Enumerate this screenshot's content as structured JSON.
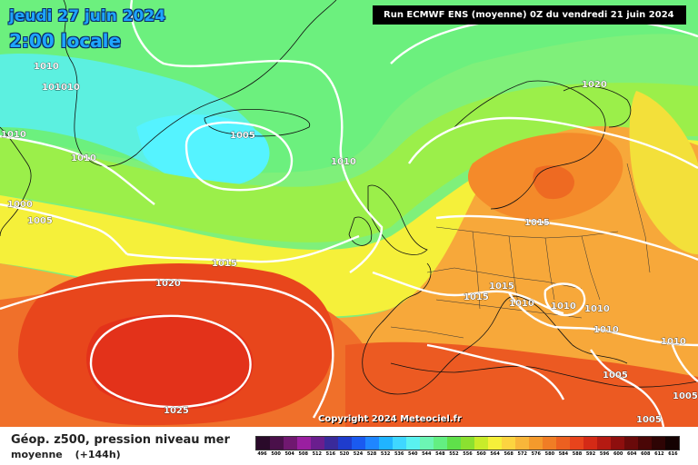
{
  "header": {
    "date": "jeudi 27 juin 2024",
    "time": "2:00 locale",
    "run_info": "Run ECMWF ENS (moyenne) 0Z du vendredi 21 juin 2024"
  },
  "map": {
    "copyright": "Copyright 2024 Meteociel.fr",
    "isobar_labels": [
      "1010",
      "1010",
      "1010",
      "1010",
      "1005",
      "1010",
      "1020",
      "1000",
      "1005",
      "1015",
      "1015",
      "1020",
      "1015",
      "1015",
      "1010",
      "1010",
      "1010",
      "1010",
      "1010",
      "1010",
      "1005",
      "1025",
      "1005",
      "1005"
    ],
    "isobar_color": "#ffffff"
  },
  "footer": {
    "product": "Géop. z500, pression niveau mer",
    "subtitle_mean": "moyenne",
    "subtitle_step": "(+144h)"
  },
  "color_scale": {
    "labels": [
      "496",
      "500",
      "504",
      "508",
      "512",
      "516",
      "520",
      "524",
      "528",
      "532",
      "536",
      "540",
      "544",
      "548",
      "552",
      "556",
      "560",
      "564",
      "568",
      "572",
      "576",
      "580",
      "584",
      "588",
      "592",
      "596",
      "600",
      "604",
      "608",
      "612",
      "616"
    ],
    "colors": [
      "#2a0a2a",
      "#4a104a",
      "#701870",
      "#9a1fa0",
      "#6a1e8e",
      "#3a2a9a",
      "#1f3ccc",
      "#1a5af0",
      "#1f86ff",
      "#20b4ff",
      "#3fd7ff",
      "#5af2f0",
      "#6cf5b4",
      "#63ef82",
      "#5fe04a",
      "#8be030",
      "#c8ec2a",
      "#f5f03a",
      "#fcd440",
      "#f8b63a",
      "#f49a2c",
      "#f07d25",
      "#ec6020",
      "#e8441c",
      "#d42a16",
      "#b51a12",
      "#8e0f0e",
      "#6a0a0a",
      "#4a0606",
      "#2e0404",
      "#140202"
    ]
  }
}
